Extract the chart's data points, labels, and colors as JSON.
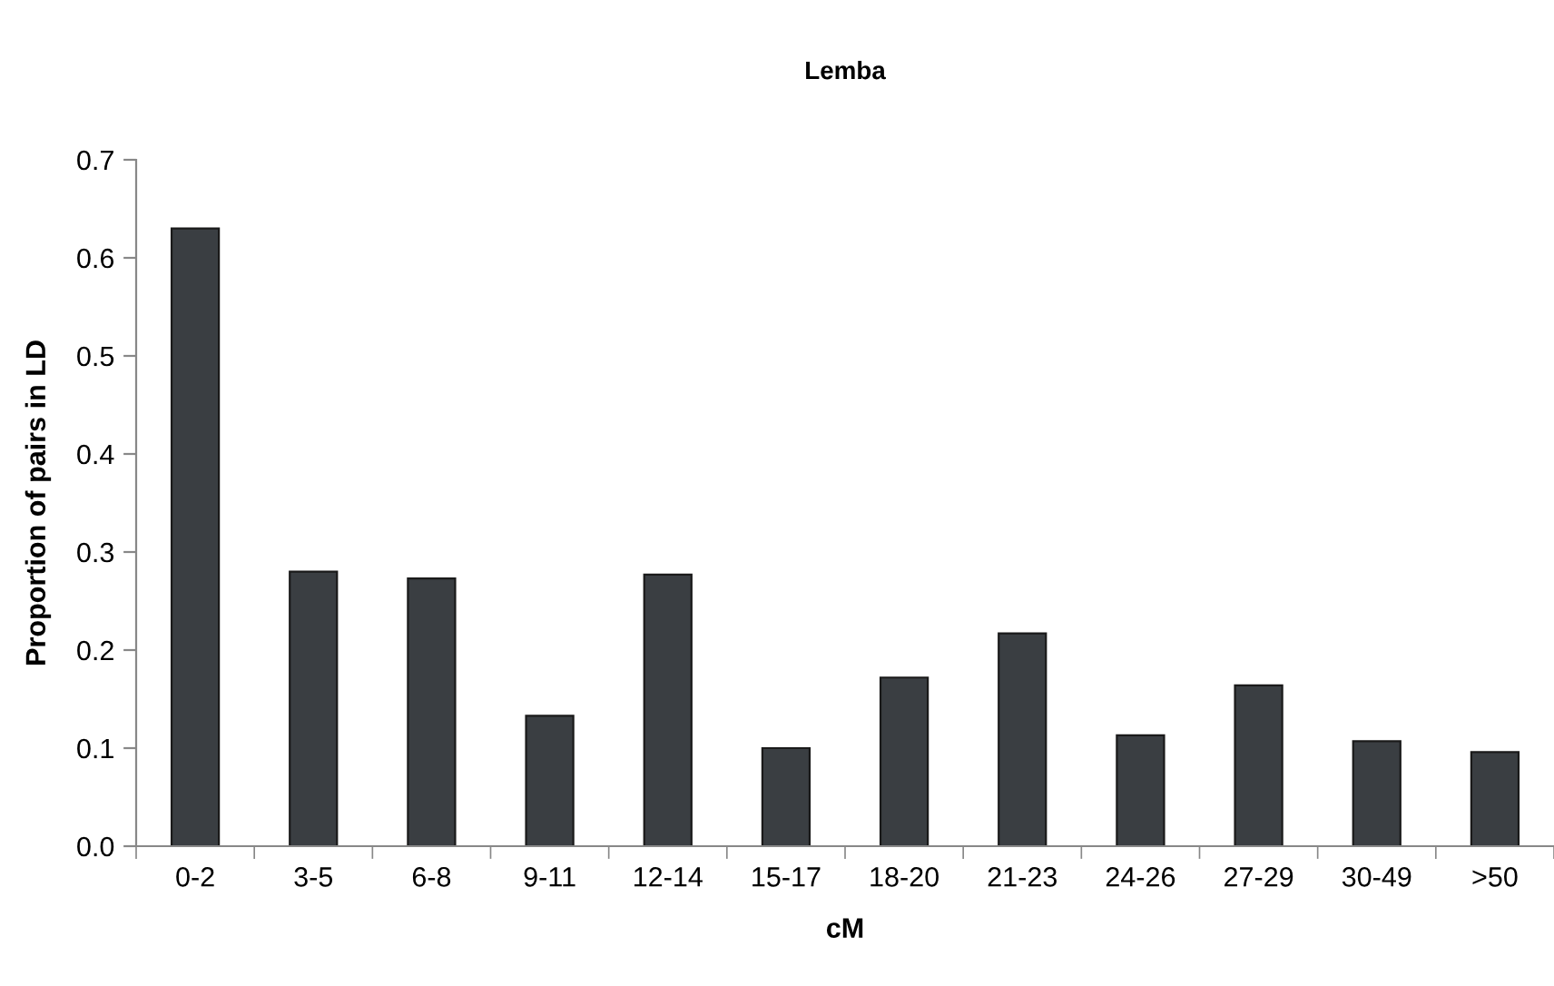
{
  "chart_data": {
    "type": "bar",
    "title": "Lemba",
    "xlabel": "cM",
    "ylabel": "Proportion of pairs in LD",
    "categories": [
      "0-2",
      "3-5",
      "6-8",
      "9-11",
      "12-14",
      "15-17",
      "18-20",
      "21-23",
      "24-26",
      "27-29",
      "30-49",
      ">50"
    ],
    "values": [
      0.63,
      0.28,
      0.273,
      0.133,
      0.277,
      0.1,
      0.172,
      0.217,
      0.113,
      0.164,
      0.107,
      0.096
    ],
    "color": "#3a3e42",
    "ylim": [
      0,
      0.7
    ],
    "yticks": [
      {
        "value": 0,
        "label": "0.0"
      },
      0.1,
      0.2,
      0.3,
      0.4,
      0.5,
      0.6,
      0.7
    ],
    "grid": false,
    "legend": false
  }
}
